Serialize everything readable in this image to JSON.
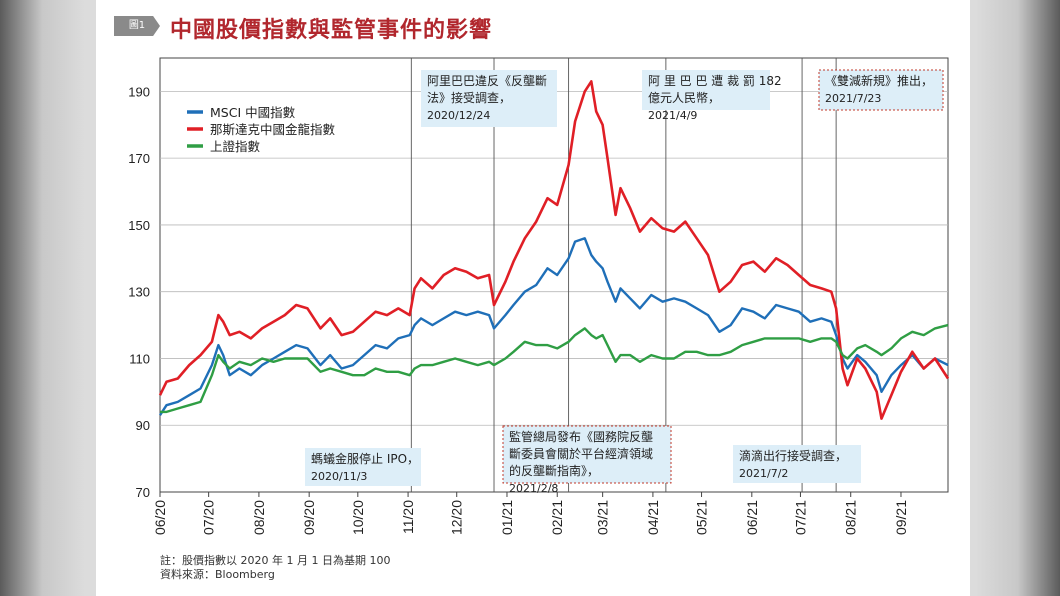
{
  "badge": "圖1",
  "title": "中國股價指數與監管事件的影響",
  "notes": {
    "base": "註：股價指數以 2020 年 1 月 1 日為基期 100",
    "source": "資料來源：Bloomberg"
  },
  "colors": {
    "msci": "#1f6fb8",
    "nasdaq": "#e01f26",
    "sse": "#2f9e44",
    "title": "#b1272d",
    "box": "#ddeef8"
  },
  "chart_data": {
    "type": "line",
    "title": "中國股價指數與監管事件的影響",
    "xlabel": "",
    "ylabel": "",
    "ylim": [
      70,
      200
    ],
    "yticks": [
      70,
      90,
      110,
      130,
      150,
      170,
      190
    ],
    "xlim": [
      "2020-06-01",
      "2021-09-30"
    ],
    "xtick_labels": [
      "06/20",
      "07/20",
      "08/20",
      "09/20",
      "10/20",
      "11/20",
      "12/20",
      "01/21",
      "02/21",
      "03/21",
      "04/21",
      "05/21",
      "06/21",
      "07/21",
      "08/21",
      "09/21"
    ],
    "xtick_dates": [
      "2020-06-01",
      "2020-07-01",
      "2020-08-01",
      "2020-09-01",
      "2020-10-01",
      "2020-11-01",
      "2020-12-01",
      "2021-01-01",
      "2021-02-01",
      "2021-03-01",
      "2021-04-01",
      "2021-05-01",
      "2021-06-01",
      "2021-07-01",
      "2021-08-01",
      "2021-09-01"
    ],
    "grid": true,
    "legend": "top-left",
    "series": [
      {
        "name": "MSCI 中國指數",
        "color": "#1f6fb8",
        "points": [
          [
            "2020-06-01",
            93
          ],
          [
            "2020-06-05",
            96
          ],
          [
            "2020-06-12",
            97
          ],
          [
            "2020-06-19",
            99
          ],
          [
            "2020-06-26",
            101
          ],
          [
            "2020-07-03",
            108
          ],
          [
            "2020-07-07",
            114
          ],
          [
            "2020-07-10",
            111
          ],
          [
            "2020-07-14",
            105
          ],
          [
            "2020-07-20",
            107
          ],
          [
            "2020-07-27",
            105
          ],
          [
            "2020-08-03",
            108
          ],
          [
            "2020-08-10",
            110
          ],
          [
            "2020-08-17",
            112
          ],
          [
            "2020-08-24",
            114
          ],
          [
            "2020-08-31",
            113
          ],
          [
            "2020-09-08",
            108
          ],
          [
            "2020-09-14",
            111
          ],
          [
            "2020-09-21",
            107
          ],
          [
            "2020-09-28",
            108
          ],
          [
            "2020-10-05",
            111
          ],
          [
            "2020-10-12",
            114
          ],
          [
            "2020-10-19",
            113
          ],
          [
            "2020-10-26",
            116
          ],
          [
            "2020-11-02",
            117
          ],
          [
            "2020-11-05",
            120
          ],
          [
            "2020-11-09",
            122
          ],
          [
            "2020-11-16",
            120
          ],
          [
            "2020-11-23",
            122
          ],
          [
            "2020-11-30",
            124
          ],
          [
            "2020-12-07",
            123
          ],
          [
            "2020-12-14",
            124
          ],
          [
            "2020-12-21",
            123
          ],
          [
            "2020-12-24",
            119
          ],
          [
            "2020-12-31",
            123
          ],
          [
            "2021-01-05",
            126
          ],
          [
            "2021-01-12",
            130
          ],
          [
            "2021-01-19",
            132
          ],
          [
            "2021-01-26",
            137
          ],
          [
            "2021-02-01",
            135
          ],
          [
            "2021-02-08",
            140
          ],
          [
            "2021-02-12",
            145
          ],
          [
            "2021-02-18",
            146
          ],
          [
            "2021-02-22",
            141
          ],
          [
            "2021-02-25",
            139
          ],
          [
            "2021-03-01",
            137
          ],
          [
            "2021-03-04",
            133
          ],
          [
            "2021-03-09",
            127
          ],
          [
            "2021-03-12",
            131
          ],
          [
            "2021-03-18",
            128
          ],
          [
            "2021-03-24",
            125
          ],
          [
            "2021-03-31",
            129
          ],
          [
            "2021-04-07",
            127
          ],
          [
            "2021-04-14",
            128
          ],
          [
            "2021-04-21",
            127
          ],
          [
            "2021-04-28",
            125
          ],
          [
            "2021-05-05",
            123
          ],
          [
            "2021-05-12",
            118
          ],
          [
            "2021-05-19",
            120
          ],
          [
            "2021-05-26",
            125
          ],
          [
            "2021-06-02",
            124
          ],
          [
            "2021-06-09",
            122
          ],
          [
            "2021-06-16",
            126
          ],
          [
            "2021-06-23",
            125
          ],
          [
            "2021-06-30",
            124
          ],
          [
            "2021-07-07",
            121
          ],
          [
            "2021-07-14",
            122
          ],
          [
            "2021-07-20",
            121
          ],
          [
            "2021-07-23",
            117
          ],
          [
            "2021-07-27",
            110
          ],
          [
            "2021-07-30",
            107
          ],
          [
            "2021-08-05",
            111
          ],
          [
            "2021-08-10",
            109
          ],
          [
            "2021-08-17",
            105
          ],
          [
            "2021-08-20",
            100
          ],
          [
            "2021-08-26",
            105
          ],
          [
            "2021-09-01",
            108
          ],
          [
            "2021-09-08",
            111
          ],
          [
            "2021-09-15",
            107
          ],
          [
            "2021-09-22",
            110
          ],
          [
            "2021-09-30",
            108
          ]
        ]
      },
      {
        "name": "那斯達克中國金龍指數",
        "color": "#e01f26",
        "points": [
          [
            "2020-06-01",
            99
          ],
          [
            "2020-06-05",
            103
          ],
          [
            "2020-06-12",
            104
          ],
          [
            "2020-06-19",
            108
          ],
          [
            "2020-06-26",
            111
          ],
          [
            "2020-07-03",
            115
          ],
          [
            "2020-07-07",
            123
          ],
          [
            "2020-07-10",
            121
          ],
          [
            "2020-07-14",
            117
          ],
          [
            "2020-07-20",
            118
          ],
          [
            "2020-07-27",
            116
          ],
          [
            "2020-08-03",
            119
          ],
          [
            "2020-08-10",
            121
          ],
          [
            "2020-08-17",
            123
          ],
          [
            "2020-08-24",
            126
          ],
          [
            "2020-08-31",
            125
          ],
          [
            "2020-09-08",
            119
          ],
          [
            "2020-09-14",
            122
          ],
          [
            "2020-09-21",
            117
          ],
          [
            "2020-09-28",
            118
          ],
          [
            "2020-10-05",
            121
          ],
          [
            "2020-10-12",
            124
          ],
          [
            "2020-10-19",
            123
          ],
          [
            "2020-10-26",
            125
          ],
          [
            "2020-11-02",
            123
          ],
          [
            "2020-11-05",
            131
          ],
          [
            "2020-11-09",
            134
          ],
          [
            "2020-11-16",
            131
          ],
          [
            "2020-11-23",
            135
          ],
          [
            "2020-11-30",
            137
          ],
          [
            "2020-12-07",
            136
          ],
          [
            "2020-12-14",
            134
          ],
          [
            "2020-12-21",
            135
          ],
          [
            "2020-12-24",
            126
          ],
          [
            "2020-12-31",
            133
          ],
          [
            "2021-01-05",
            139
          ],
          [
            "2021-01-12",
            146
          ],
          [
            "2021-01-19",
            151
          ],
          [
            "2021-01-26",
            158
          ],
          [
            "2021-02-01",
            156
          ],
          [
            "2021-02-08",
            168
          ],
          [
            "2021-02-12",
            181
          ],
          [
            "2021-02-18",
            190
          ],
          [
            "2021-02-22",
            193
          ],
          [
            "2021-02-25",
            184
          ],
          [
            "2021-03-01",
            180
          ],
          [
            "2021-03-04",
            170
          ],
          [
            "2021-03-09",
            153
          ],
          [
            "2021-03-12",
            161
          ],
          [
            "2021-03-18",
            155
          ],
          [
            "2021-03-24",
            148
          ],
          [
            "2021-03-31",
            152
          ],
          [
            "2021-04-07",
            149
          ],
          [
            "2021-04-14",
            148
          ],
          [
            "2021-04-21",
            151
          ],
          [
            "2021-04-28",
            146
          ],
          [
            "2021-05-05",
            141
          ],
          [
            "2021-05-12",
            130
          ],
          [
            "2021-05-19",
            133
          ],
          [
            "2021-05-26",
            138
          ],
          [
            "2021-06-02",
            139
          ],
          [
            "2021-06-09",
            136
          ],
          [
            "2021-06-16",
            140
          ],
          [
            "2021-06-23",
            138
          ],
          [
            "2021-06-30",
            135
          ],
          [
            "2021-07-07",
            132
          ],
          [
            "2021-07-14",
            131
          ],
          [
            "2021-07-20",
            130
          ],
          [
            "2021-07-23",
            125
          ],
          [
            "2021-07-27",
            107
          ],
          [
            "2021-07-30",
            102
          ],
          [
            "2021-08-05",
            110
          ],
          [
            "2021-08-10",
            107
          ],
          [
            "2021-08-17",
            100
          ],
          [
            "2021-08-20",
            92
          ],
          [
            "2021-08-26",
            99
          ],
          [
            "2021-09-01",
            106
          ],
          [
            "2021-09-08",
            112
          ],
          [
            "2021-09-15",
            107
          ],
          [
            "2021-09-22",
            110
          ],
          [
            "2021-09-30",
            104
          ]
        ]
      },
      {
        "name": "上證指數",
        "color": "#2f9e44",
        "points": [
          [
            "2020-06-01",
            94
          ],
          [
            "2020-06-05",
            94
          ],
          [
            "2020-06-12",
            95
          ],
          [
            "2020-06-19",
            96
          ],
          [
            "2020-06-26",
            97
          ],
          [
            "2020-07-03",
            105
          ],
          [
            "2020-07-07",
            111
          ],
          [
            "2020-07-10",
            109
          ],
          [
            "2020-07-14",
            107
          ],
          [
            "2020-07-20",
            109
          ],
          [
            "2020-07-27",
            108
          ],
          [
            "2020-08-03",
            110
          ],
          [
            "2020-08-10",
            109
          ],
          [
            "2020-08-17",
            110
          ],
          [
            "2020-08-24",
            110
          ],
          [
            "2020-08-31",
            110
          ],
          [
            "2020-09-08",
            106
          ],
          [
            "2020-09-14",
            107
          ],
          [
            "2020-09-21",
            106
          ],
          [
            "2020-09-28",
            105
          ],
          [
            "2020-10-05",
            105
          ],
          [
            "2020-10-12",
            107
          ],
          [
            "2020-10-19",
            106
          ],
          [
            "2020-10-26",
            106
          ],
          [
            "2020-11-02",
            105
          ],
          [
            "2020-11-05",
            107
          ],
          [
            "2020-11-09",
            108
          ],
          [
            "2020-11-16",
            108
          ],
          [
            "2020-11-23",
            109
          ],
          [
            "2020-11-30",
            110
          ],
          [
            "2020-12-07",
            109
          ],
          [
            "2020-12-14",
            108
          ],
          [
            "2020-12-21",
            109
          ],
          [
            "2020-12-24",
            108
          ],
          [
            "2020-12-31",
            110
          ],
          [
            "2021-01-05",
            112
          ],
          [
            "2021-01-12",
            115
          ],
          [
            "2021-01-19",
            114
          ],
          [
            "2021-01-26",
            114
          ],
          [
            "2021-02-01",
            113
          ],
          [
            "2021-02-08",
            115
          ],
          [
            "2021-02-12",
            117
          ],
          [
            "2021-02-18",
            119
          ],
          [
            "2021-02-22",
            117
          ],
          [
            "2021-02-25",
            116
          ],
          [
            "2021-03-01",
            117
          ],
          [
            "2021-03-04",
            114
          ],
          [
            "2021-03-09",
            109
          ],
          [
            "2021-03-12",
            111
          ],
          [
            "2021-03-18",
            111
          ],
          [
            "2021-03-24",
            109
          ],
          [
            "2021-03-31",
            111
          ],
          [
            "2021-04-07",
            110
          ],
          [
            "2021-04-14",
            110
          ],
          [
            "2021-04-21",
            112
          ],
          [
            "2021-04-28",
            112
          ],
          [
            "2021-05-05",
            111
          ],
          [
            "2021-05-12",
            111
          ],
          [
            "2021-05-19",
            112
          ],
          [
            "2021-05-26",
            114
          ],
          [
            "2021-06-02",
            115
          ],
          [
            "2021-06-09",
            116
          ],
          [
            "2021-06-16",
            116
          ],
          [
            "2021-06-23",
            116
          ],
          [
            "2021-06-30",
            116
          ],
          [
            "2021-07-07",
            115
          ],
          [
            "2021-07-14",
            116
          ],
          [
            "2021-07-20",
            116
          ],
          [
            "2021-07-23",
            115
          ],
          [
            "2021-07-27",
            111
          ],
          [
            "2021-07-30",
            110
          ],
          [
            "2021-08-05",
            113
          ],
          [
            "2021-08-10",
            114
          ],
          [
            "2021-08-17",
            112
          ],
          [
            "2021-08-20",
            111
          ],
          [
            "2021-08-26",
            113
          ],
          [
            "2021-09-01",
            116
          ],
          [
            "2021-09-08",
            118
          ],
          [
            "2021-09-15",
            117
          ],
          [
            "2021-09-22",
            119
          ],
          [
            "2021-09-30",
            120
          ]
        ]
      }
    ],
    "events": [
      {
        "date": "2020-11-03",
        "label": "螞蟻金服停止 IPO，",
        "date_label": "2020/11/3",
        "position": "bottom",
        "style": "solid"
      },
      {
        "date": "2020-12-24",
        "label": "阿里巴巴違反《反壟斷法》接受調查，",
        "lines": [
          "阿里巴巴違反《反壟斷",
          "法》接受調查，"
        ],
        "date_label": "2020/12/24",
        "position": "top",
        "style": "solid"
      },
      {
        "date": "2021-02-08",
        "label": "監管總局發布《國務院反壟斷委員會關於平台經濟領域的反壟斷指南》，",
        "lines": [
          "監管總局發布《國務院反壟",
          "斷委員會關於平台經濟領域",
          "的反壟斷指南》，"
        ],
        "date_label": "2021/2/8",
        "position": "bottom",
        "style": "dashed"
      },
      {
        "date": "2021-04-09",
        "label": "阿里巴巴遭裁罰 182 億元人民幣，",
        "lines": [
          "阿 里 巴 巴 遭 裁 罰 182",
          "億元人民幣，"
        ],
        "date_label": "2021/4/9",
        "position": "top",
        "style": "solid"
      },
      {
        "date": "2021-07-02",
        "label": "滴滴出行接受調查，",
        "date_label": "2021/7/2",
        "position": "bottom",
        "style": "solid"
      },
      {
        "date": "2021-07-23",
        "label": "《雙減新規》推出，",
        "date_label": "2021/7/23",
        "position": "top",
        "style": "dashed"
      }
    ]
  }
}
